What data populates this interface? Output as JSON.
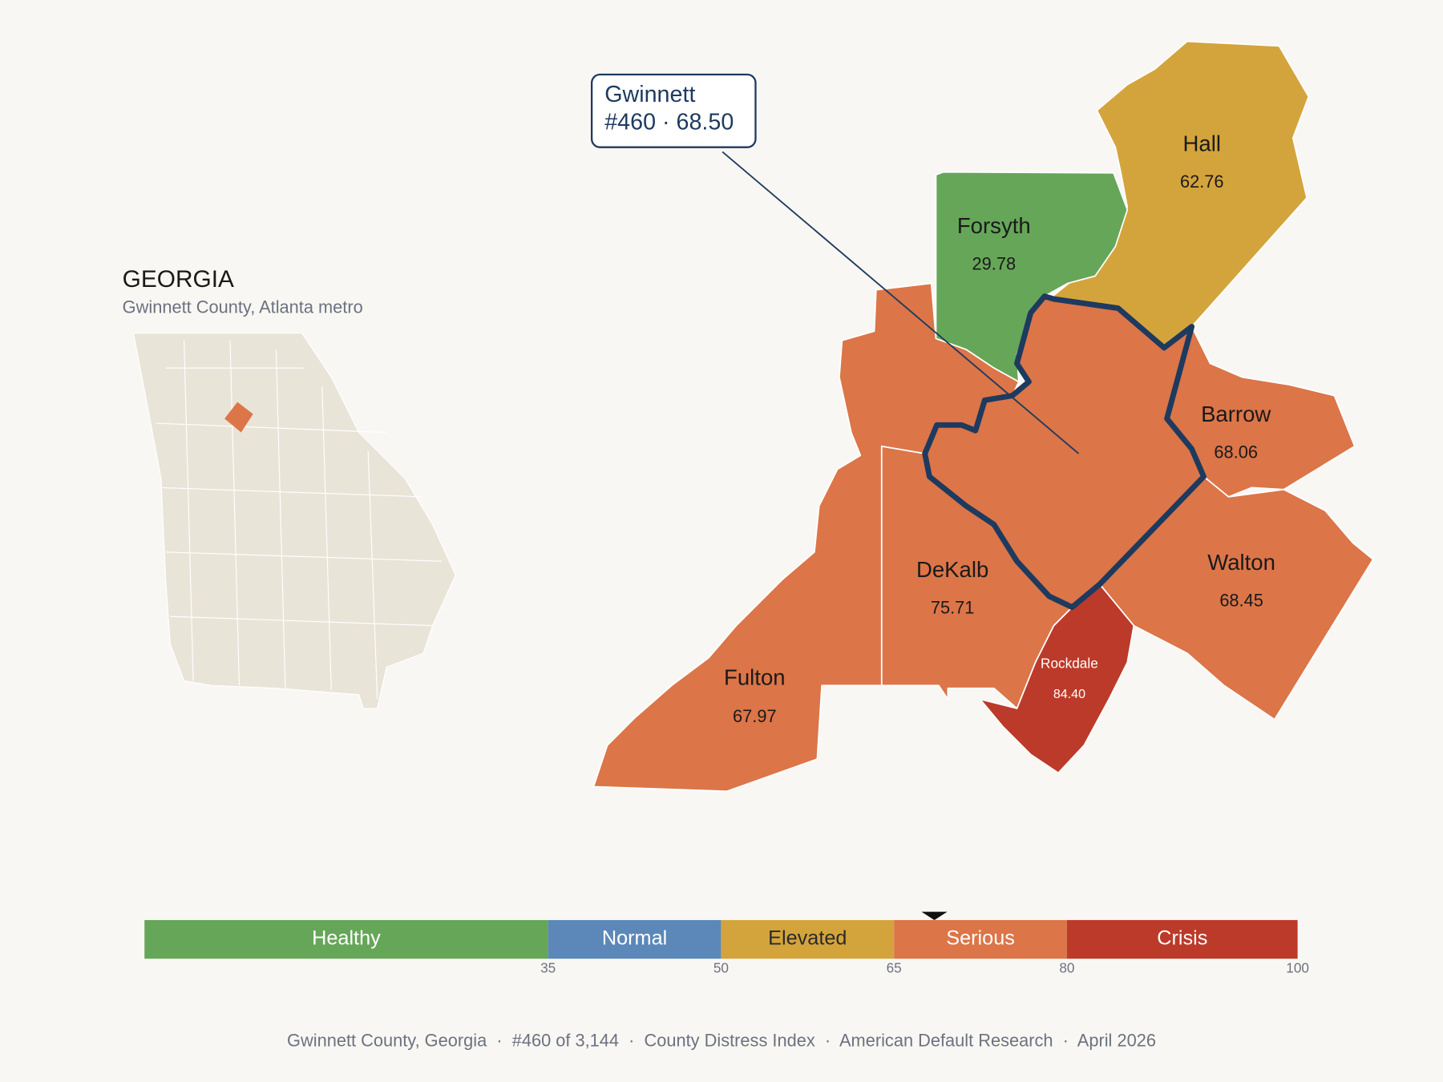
{
  "header": {
    "title": "GEORGIA",
    "subtitle": "Gwinnett County, Atlanta metro"
  },
  "counties": [
    {
      "name": "Gwinnett",
      "value": 68.5,
      "highlight": true
    },
    {
      "name": "Hall",
      "value": 62.76,
      "value_label": "62.76"
    },
    {
      "name": "Forsyth",
      "value": 29.78,
      "value_label": "29.78"
    },
    {
      "name": "Barrow",
      "value": 68.06,
      "value_label": "68.06"
    },
    {
      "name": "Walton",
      "value": 68.45,
      "value_label": "68.45"
    },
    {
      "name": "Rockdale",
      "value": 84.4,
      "value_label": "84.40"
    },
    {
      "name": "DeKalb",
      "value": 75.71,
      "value_label": "75.71"
    },
    {
      "name": "Fulton",
      "value": 67.97,
      "value_label": "67.97"
    }
  ],
  "callout": {
    "detail": "#460 · 68.50"
  },
  "legend": {
    "xlim": [
      0,
      100
    ],
    "ticks": [
      35,
      50,
      65,
      80,
      100
    ],
    "bands": [
      {
        "label": "Healthy",
        "color": "#66a659",
        "label_color": "#ffffff"
      },
      {
        "label": "Normal",
        "color": "#5b88b8",
        "label_color": "#ffffff"
      },
      {
        "label": "Elevated",
        "color": "#d4a43c",
        "label_color": "#2a2a2a"
      },
      {
        "label": "Serious",
        "color": "#dc7548",
        "label_color": "#ffffff"
      },
      {
        "label": "Crisis",
        "color": "#bc3a2a",
        "label_color": "#ffffff"
      }
    ]
  },
  "footer": "Gwinnett County, Georgia  ·  #460 of 3,144  ·  County Distress Index  ·  American Default Research  ·  April 2026"
}
